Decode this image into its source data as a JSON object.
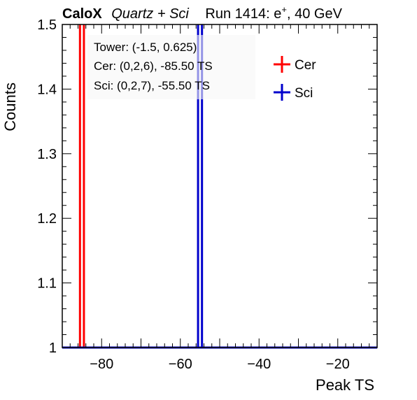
{
  "header": {
    "experiment": "CaloX",
    "detectors": "Quartz + Sci",
    "run_prefix": "Run 1414: e",
    "run_superscript": "+",
    "run_suffix": ", 40 GeV"
  },
  "annotations": {
    "tower": "Tower: (-1.5, 0.625)",
    "cer": "Cer: (0,2,6), -85.50 TS",
    "sci": "Sci: (0,2,7), -55.50 TS"
  },
  "chart_data": {
    "type": "line",
    "xlabel": "Peak TS",
    "ylabel": "Counts",
    "xlim": [
      -90,
      -10
    ],
    "ylim": [
      1,
      1.5
    ],
    "x_ticks": [
      -80,
      -60,
      -40,
      -20
    ],
    "x_tick_labels": [
      "−80",
      "−60",
      "−40",
      "−20"
    ],
    "y_ticks": [
      1,
      1.1,
      1.2,
      1.3,
      1.4,
      1.5
    ],
    "y_tick_labels": [
      "1",
      "1.1",
      "1.2",
      "1.3",
      "1.4",
      "1.5"
    ],
    "grid": false,
    "legend_position": "top-right",
    "series": [
      {
        "name": "Cer",
        "color": "#ff0000",
        "bin_low": -85.5,
        "bin_high": -84.5,
        "count": 1
      },
      {
        "name": "Sci",
        "color": "#0000cc",
        "bin_low": -55.5,
        "bin_high": -54.5,
        "count": 1
      }
    ]
  }
}
